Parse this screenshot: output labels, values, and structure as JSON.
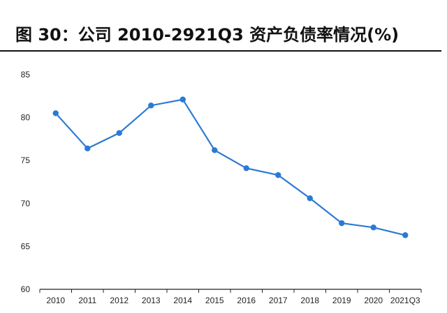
{
  "title": "图 30：公司 2010-2921Q3 资产负债率情况(%)",
  "chart_data": {
    "type": "line",
    "title": "图 30：公司 2010-2921Q3 资产负债率情况(%)",
    "categories": [
      "2010",
      "2011",
      "2012",
      "2013",
      "2014",
      "2015",
      "2016",
      "2017",
      "2018",
      "2019",
      "2020",
      "2021Q3"
    ],
    "series": [
      {
        "values": [
          80.5,
          76.4,
          78.2,
          81.4,
          82.1,
          76.2,
          74.1,
          73.3,
          70.6,
          67.7,
          67.2,
          66.3
        ],
        "color": "#2a7ad5"
      }
    ],
    "ylim": [
      60,
      85
    ],
    "yticks": [
      60,
      65,
      70,
      75,
      80,
      85
    ],
    "grid": false,
    "legend": "none"
  }
}
